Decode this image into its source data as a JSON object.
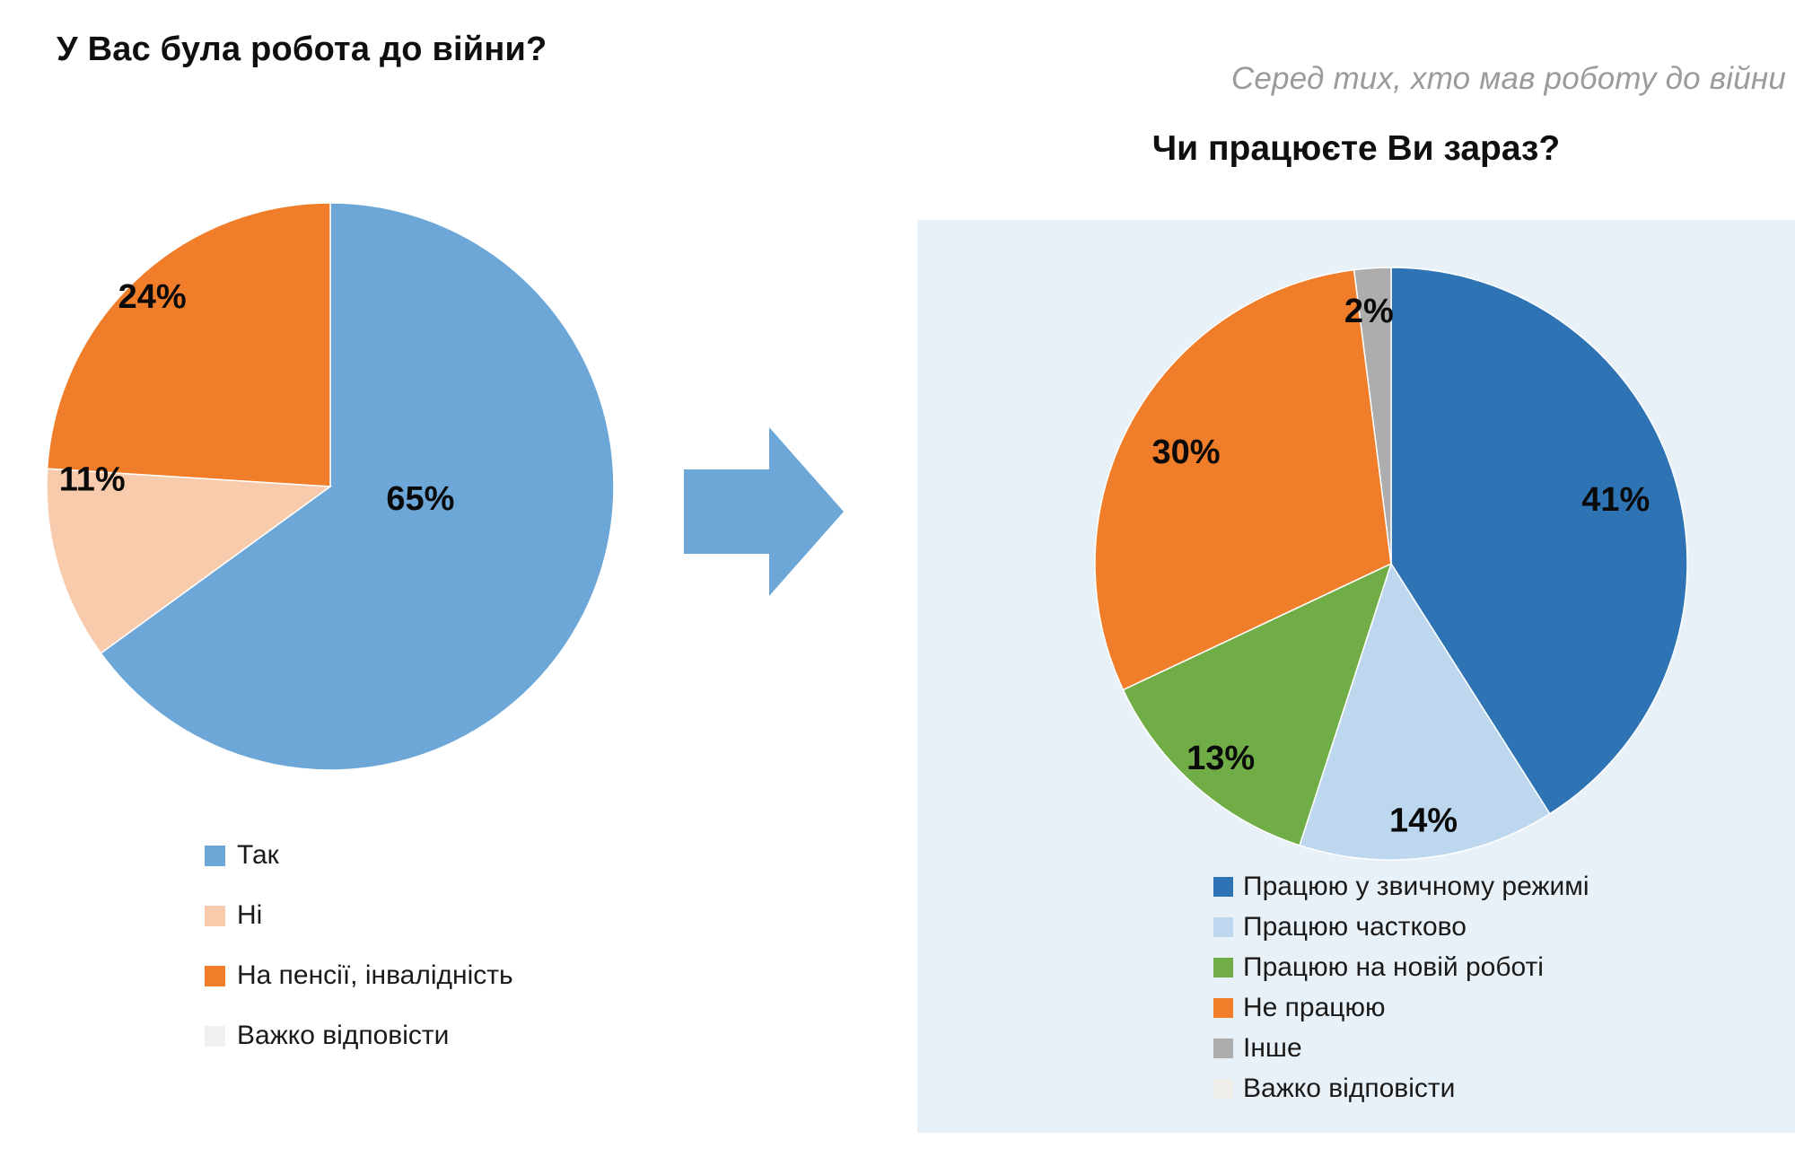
{
  "page": {
    "background": "#ffffff",
    "panel_background": "#E9F1F8"
  },
  "arrow": {
    "direction": "right",
    "color": "#6CA7D8"
  },
  "chart_data": [
    {
      "id": "before-war-job",
      "type": "pie",
      "title": "У Вас була робота до війни?",
      "unit": "%",
      "start_angle_deg": 0,
      "direction": "clockwise",
      "legend_position": "bottom",
      "slices": [
        {
          "label": "Так",
          "value": 65,
          "display": "65%",
          "color": "#6CA7D8"
        },
        {
          "label": "Ні",
          "value": 11,
          "display": "11%",
          "color": "#F8CBAD"
        },
        {
          "label": "На пенсії, інвалідність",
          "value": 24,
          "display": "24%",
          "color": "#F07D29"
        },
        {
          "label": "Важко відповісти",
          "value": 0,
          "display": "",
          "color": "#F0F0F0"
        }
      ]
    },
    {
      "id": "working-now",
      "type": "pie",
      "title": "Чи працюєте Ви зараз?",
      "subtitle": "Серед тих, хто мав роботу до війни",
      "unit": "%",
      "start_angle_deg": 0,
      "direction": "clockwise",
      "legend_position": "bottom",
      "slices": [
        {
          "label": "Працюю у звичному режимі",
          "value": 41,
          "display": "41%",
          "color": "#2E74B5"
        },
        {
          "label": "Працюю частково",
          "value": 14,
          "display": "14%",
          "color": "#BDD7EE"
        },
        {
          "label": "Працюю на новій роботі",
          "value": 13,
          "display": "13%",
          "color": "#70AD47"
        },
        {
          "label": "Не працюю",
          "value": 30,
          "display": "30%",
          "color": "#F07D29"
        },
        {
          "label": "Інше",
          "value": 2,
          "display": "2%",
          "color": "#ADADAD"
        },
        {
          "label": "Важко відповісти",
          "value": 0,
          "display": "",
          "color": "#F0EEE9"
        }
      ]
    }
  ]
}
